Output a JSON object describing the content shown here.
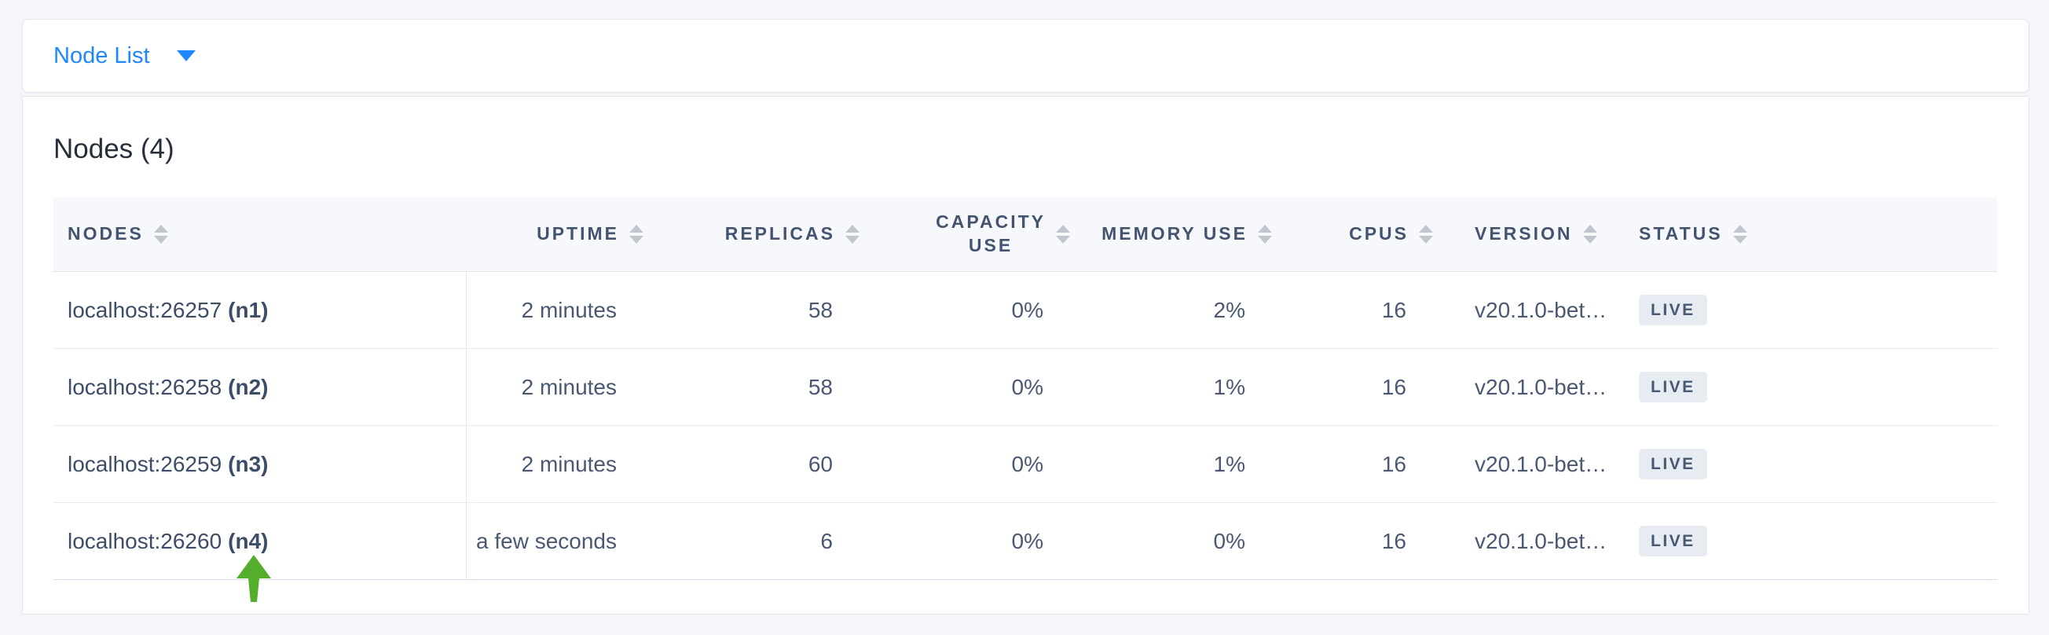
{
  "toolbar": {
    "view_selector": "Node List"
  },
  "main": {
    "title": "Nodes (4)",
    "table": {
      "columns": [
        {
          "key": "node",
          "label_lines": [
            "NODES"
          ],
          "align": "left",
          "sortable": true
        },
        {
          "key": "uptime",
          "label_lines": [
            "UPTIME"
          ],
          "align": "right",
          "sortable": true
        },
        {
          "key": "replicas",
          "label_lines": [
            "REPLICAS"
          ],
          "align": "right",
          "sortable": true
        },
        {
          "key": "capacity_use",
          "label_lines": [
            "CAPACITY",
            "USE"
          ],
          "align": "right",
          "sortable": true
        },
        {
          "key": "memory_use",
          "label_lines": [
            "MEMORY USE"
          ],
          "align": "right",
          "sortable": true
        },
        {
          "key": "cpus",
          "label_lines": [
            "CPUS"
          ],
          "align": "right",
          "sortable": true
        },
        {
          "key": "version",
          "label_lines": [
            "VERSION"
          ],
          "align": "left",
          "sortable": true
        },
        {
          "key": "status",
          "label_lines": [
            "STATUS"
          ],
          "align": "left",
          "sortable": true
        }
      ],
      "rows": [
        {
          "node": "localhost:26257",
          "node_id": "(n1)",
          "uptime": "2 minutes",
          "replicas": "58",
          "capacity_use": "0%",
          "memory_use": "2%",
          "cpus": "16",
          "version": "v20.1.0-bet…",
          "status": "LIVE"
        },
        {
          "node": "localhost:26258",
          "node_id": "(n2)",
          "uptime": "2 minutes",
          "replicas": "58",
          "capacity_use": "0%",
          "memory_use": "1%",
          "cpus": "16",
          "version": "v20.1.0-bet…",
          "status": "LIVE"
        },
        {
          "node": "localhost:26259",
          "node_id": "(n3)",
          "uptime": "2 minutes",
          "replicas": "60",
          "capacity_use": "0%",
          "memory_use": "1%",
          "cpus": "16",
          "version": "v20.1.0-bet…",
          "status": "LIVE"
        },
        {
          "node": "localhost:26260",
          "node_id": "(n4)",
          "uptime": "a few seconds",
          "replicas": "6",
          "capacity_use": "0%",
          "memory_use": "0%",
          "cpus": "16",
          "version": "v20.1.0-bet…",
          "status": "LIVE"
        }
      ]
    }
  },
  "annotation": {
    "green_arrow_points_to": "(n4)"
  },
  "icons": {
    "caret_down": "filled-triangle-down",
    "sort": "up-down-triangles"
  },
  "colors": {
    "accent_blue": "#1e87ff",
    "badge_bg": "#e7ecf3",
    "badge_text": "#475872",
    "arrow_green": "#54ae2b",
    "page_bg": "#f4f6fa"
  }
}
